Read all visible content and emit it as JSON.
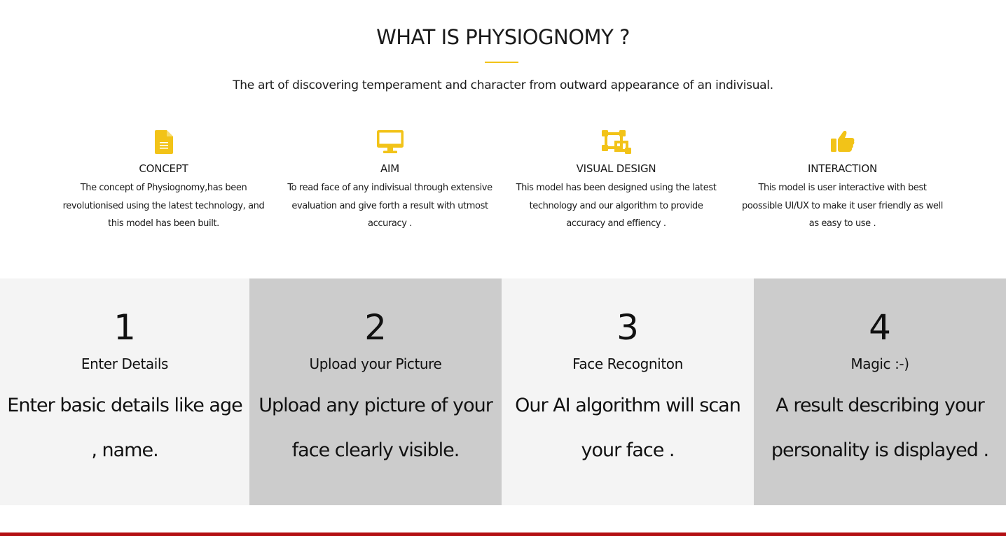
{
  "about": {
    "title": "WHAT IS PHYSIOGNOMY ?",
    "subtitle": "The art of discovering temperament and character from outward appearance of an indivisual.",
    "accent_color": "#f2c318",
    "features": [
      {
        "icon": "document-icon",
        "title": "CONCEPT",
        "description": "The concept of Physiognomy,has been revolutionised using the latest technology, and this model has been built."
      },
      {
        "icon": "monitor-icon",
        "title": "AIM",
        "description": "To read face of any indivisual through extensive evaluation and give forth a result with utmost accuracy ."
      },
      {
        "icon": "vector-design-icon",
        "title": "VISUAL DESIGN",
        "description": "This model has been designed using the latest technology and our algorithm to provide accuracy and effiency ."
      },
      {
        "icon": "thumbs-up-icon",
        "title": "INTERACTION",
        "description": "This model is user interactive with best poossible UI/UX to make it user friendly as well as easy to use ."
      }
    ]
  },
  "steps": [
    {
      "number": "1",
      "title": "Enter Details",
      "description": "Enter basic details like age , name.",
      "background": "#f4f4f4"
    },
    {
      "number": "2",
      "title": "Upload your Picture",
      "description": "Upload any picture of your face clearly visible.",
      "background": "#cccccc"
    },
    {
      "number": "3",
      "title": "Face Recogniton",
      "description": "Our AI algorithm will scan your face .",
      "background": "#f4f4f4"
    },
    {
      "number": "4",
      "title": "Magic :-)",
      "description": "A result describing your personality is displayed .",
      "background": "#cccccc"
    }
  ],
  "footer": {
    "bar_color": "#b30f12"
  }
}
